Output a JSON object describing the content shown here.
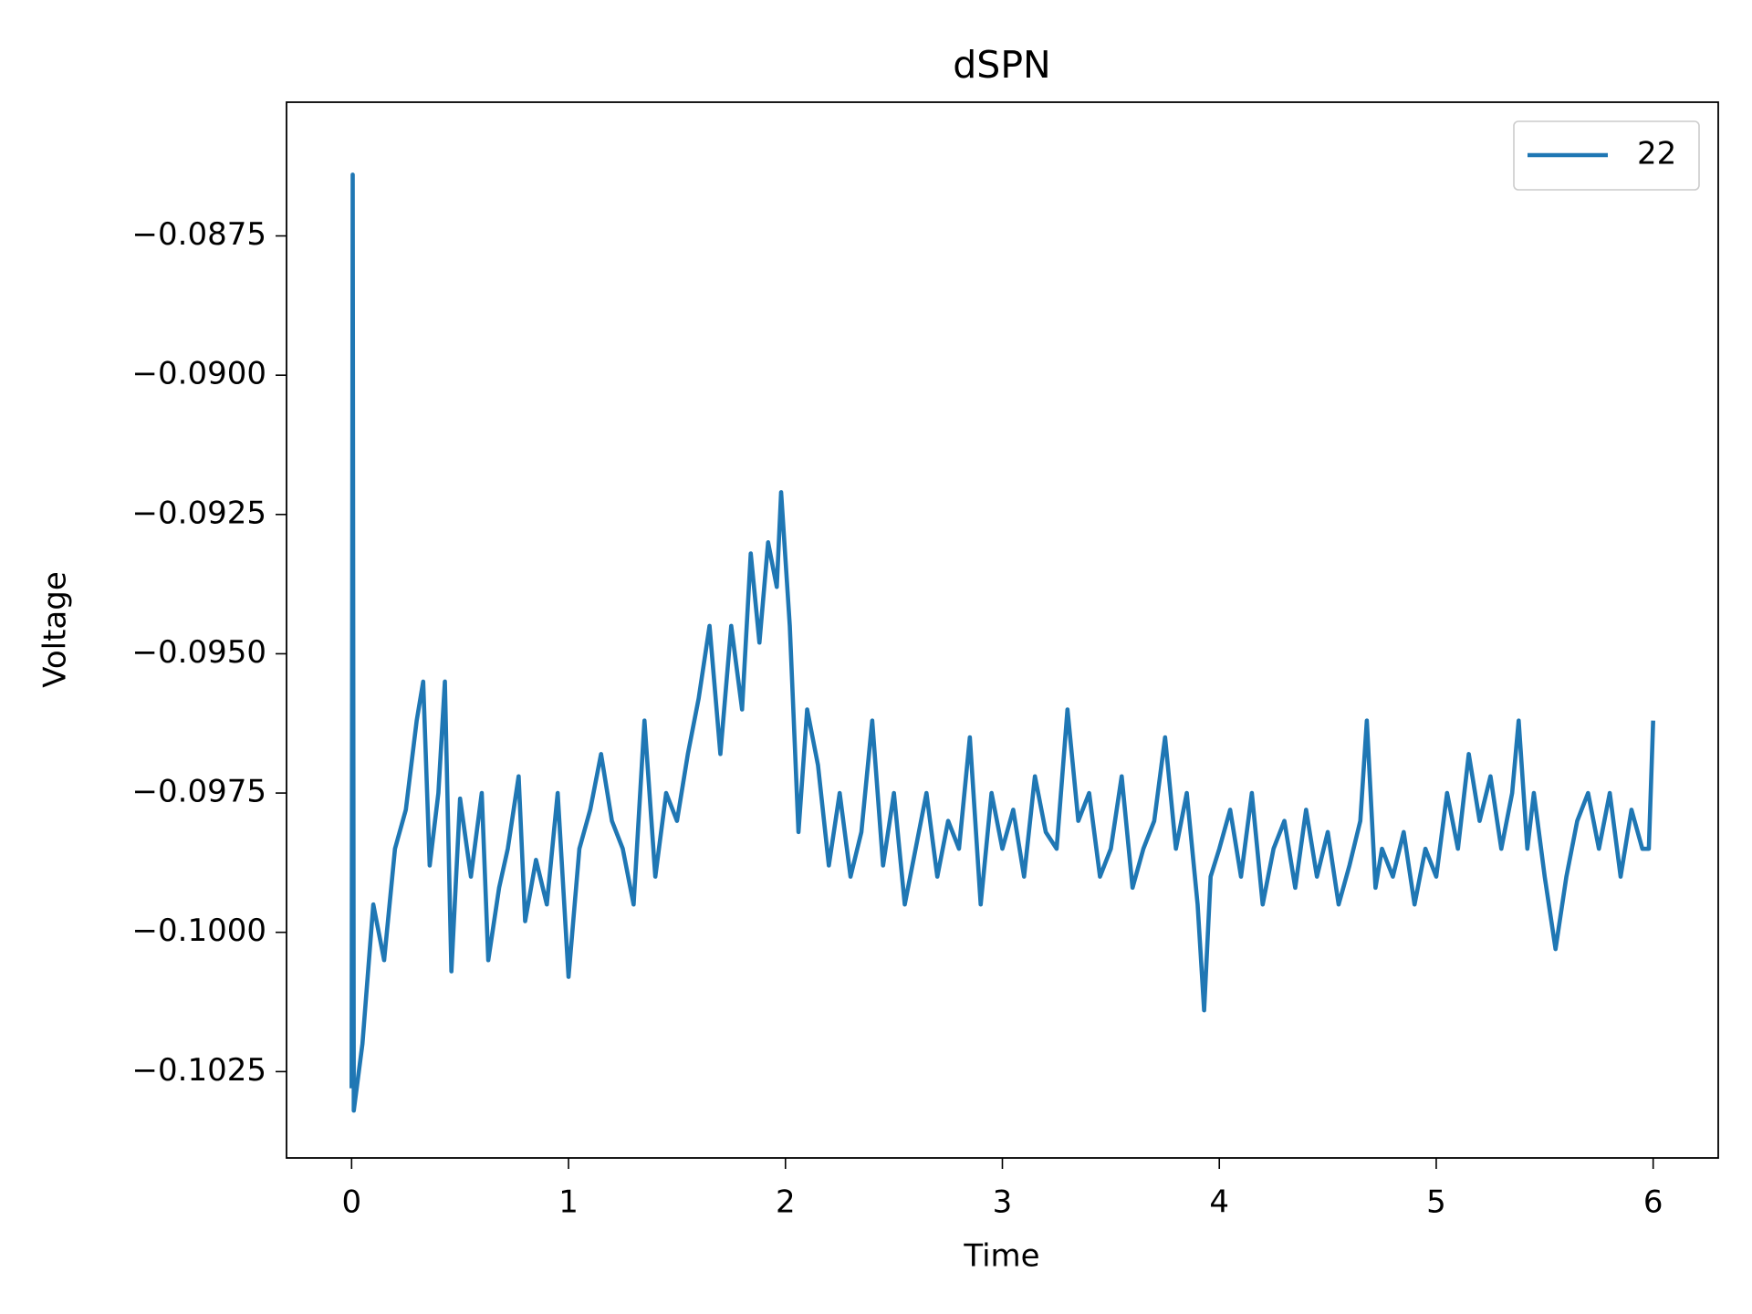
{
  "chart_data": {
    "type": "line",
    "title": "dSPN",
    "x_label": "Time",
    "y_label": "Voltage",
    "x": [
      0,
      0.005,
      0.01,
      0.05,
      0.1,
      0.15,
      0.2,
      0.25,
      0.3,
      0.33,
      0.36,
      0.4,
      0.43,
      0.46,
      0.5,
      0.55,
      0.6,
      0.63,
      0.68,
      0.72,
      0.77,
      0.8,
      0.85,
      0.9,
      0.95,
      1.0,
      1.05,
      1.1,
      1.15,
      1.2,
      1.25,
      1.3,
      1.35,
      1.4,
      1.45,
      1.5,
      1.55,
      1.6,
      1.65,
      1.7,
      1.75,
      1.8,
      1.84,
      1.88,
      1.92,
      1.96,
      1.98,
      2.02,
      2.06,
      2.1,
      2.15,
      2.2,
      2.25,
      2.3,
      2.35,
      2.4,
      2.45,
      2.5,
      2.55,
      2.6,
      2.65,
      2.7,
      2.75,
      2.8,
      2.85,
      2.9,
      2.95,
      3.0,
      3.05,
      3.1,
      3.15,
      3.2,
      3.25,
      3.3,
      3.35,
      3.4,
      3.45,
      3.5,
      3.55,
      3.6,
      3.65,
      3.7,
      3.75,
      3.8,
      3.85,
      3.9,
      3.93,
      3.96,
      4.0,
      4.05,
      4.1,
      4.15,
      4.2,
      4.25,
      4.3,
      4.35,
      4.4,
      4.45,
      4.5,
      4.55,
      4.6,
      4.65,
      4.68,
      4.72,
      4.75,
      4.8,
      4.85,
      4.9,
      4.95,
      5.0,
      5.05,
      5.1,
      5.15,
      5.2,
      5.25,
      5.3,
      5.35,
      5.38,
      5.42,
      5.45,
      5.5,
      5.55,
      5.6,
      5.65,
      5.7,
      5.75,
      5.8,
      5.85,
      5.9,
      5.95,
      5.98,
      6.0
    ],
    "series": [
      {
        "name": "22",
        "color": "#1f77b4",
        "values": [
          -0.1028,
          -0.0864,
          -0.1032,
          -0.102,
          -0.0995,
          -0.1005,
          -0.0985,
          -0.0978,
          -0.0962,
          -0.0955,
          -0.0988,
          -0.0975,
          -0.0955,
          -0.1007,
          -0.0976,
          -0.099,
          -0.0975,
          -0.1005,
          -0.0992,
          -0.0985,
          -0.0972,
          -0.0998,
          -0.0987,
          -0.0995,
          -0.0975,
          -0.1008,
          -0.0985,
          -0.0978,
          -0.0968,
          -0.098,
          -0.0985,
          -0.0995,
          -0.0962,
          -0.099,
          -0.0975,
          -0.098,
          -0.0968,
          -0.0958,
          -0.0945,
          -0.0968,
          -0.0945,
          -0.096,
          -0.0932,
          -0.0948,
          -0.093,
          -0.0938,
          -0.0921,
          -0.0945,
          -0.0982,
          -0.096,
          -0.097,
          -0.0988,
          -0.0975,
          -0.099,
          -0.0982,
          -0.0962,
          -0.0988,
          -0.0975,
          -0.0995,
          -0.0985,
          -0.0975,
          -0.099,
          -0.098,
          -0.0985,
          -0.0965,
          -0.0995,
          -0.0975,
          -0.0985,
          -0.0978,
          -0.099,
          -0.0972,
          -0.0982,
          -0.0985,
          -0.096,
          -0.098,
          -0.0975,
          -0.099,
          -0.0985,
          -0.0972,
          -0.0992,
          -0.0985,
          -0.098,
          -0.0965,
          -0.0985,
          -0.0975,
          -0.0995,
          -0.1014,
          -0.099,
          -0.0985,
          -0.0978,
          -0.099,
          -0.0975,
          -0.0995,
          -0.0985,
          -0.098,
          -0.0992,
          -0.0978,
          -0.099,
          -0.0982,
          -0.0995,
          -0.0988,
          -0.098,
          -0.0962,
          -0.0992,
          -0.0985,
          -0.099,
          -0.0982,
          -0.0995,
          -0.0985,
          -0.099,
          -0.0975,
          -0.0985,
          -0.0968,
          -0.098,
          -0.0972,
          -0.0985,
          -0.0975,
          -0.0962,
          -0.0985,
          -0.0975,
          -0.099,
          -0.1003,
          -0.099,
          -0.098,
          -0.0975,
          -0.0985,
          -0.0975,
          -0.099,
          -0.0978,
          -0.0985,
          -0.0985,
          -0.0962
        ]
      }
    ],
    "xlim": [
      -0.3,
      6.3
    ],
    "ylim": [
      -0.10405,
      -0.0851
    ],
    "xticks": [
      0,
      1,
      2,
      3,
      4,
      5,
      6
    ],
    "yticks": [
      {
        "value": -0.1025,
        "label": "−0.1025"
      },
      {
        "value": -0.1,
        "label": "−0.1000"
      },
      {
        "value": -0.0975,
        "label": "−0.0975"
      },
      {
        "value": -0.095,
        "label": "−0.0950"
      },
      {
        "value": -0.0925,
        "label": "−0.0925"
      },
      {
        "value": -0.09,
        "label": "−0.0900"
      },
      {
        "value": -0.0875,
        "label": "−0.0875"
      }
    ],
    "legend": "upper right"
  }
}
